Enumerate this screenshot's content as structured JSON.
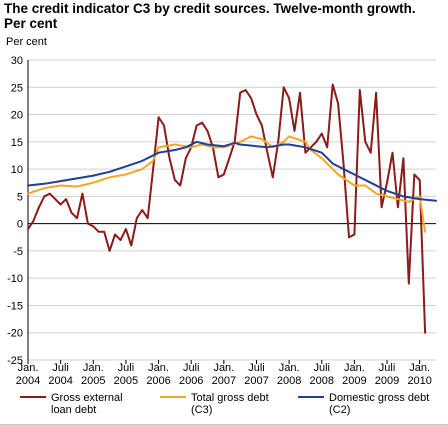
{
  "title_line1": "The credit indicator C3 by credit sources. Twelve-month growth.",
  "title_line2": "Per cent",
  "ylabel": "Per cent",
  "chart_data": {
    "type": "line",
    "ylim": [
      -25,
      30
    ],
    "yticks": [
      30,
      25,
      20,
      15,
      10,
      5,
      0,
      -5,
      -10,
      -15,
      -20,
      -25
    ],
    "xlim": [
      2004.0,
      2010.25
    ],
    "grid": "horizontal",
    "legend_position": "bottom",
    "xticks": [
      {
        "x": 2004.0,
        "top": "Jan.",
        "bottom": "2004"
      },
      {
        "x": 2004.5,
        "top": "Juli",
        "bottom": "2004"
      },
      {
        "x": 2005.0,
        "top": "Jan.",
        "bottom": "2005"
      },
      {
        "x": 2005.5,
        "top": "Juli",
        "bottom": "2005"
      },
      {
        "x": 2006.0,
        "top": "Jan.",
        "bottom": "2006"
      },
      {
        "x": 2006.5,
        "top": "Juli",
        "bottom": "2006"
      },
      {
        "x": 2007.0,
        "top": "Jan.",
        "bottom": "2007"
      },
      {
        "x": 2007.5,
        "top": "Juli",
        "bottom": "2007"
      },
      {
        "x": 2008.0,
        "top": "Jan.",
        "bottom": "2008"
      },
      {
        "x": 2008.5,
        "top": "Juli",
        "bottom": "2008"
      },
      {
        "x": 2009.0,
        "top": "Jan.",
        "bottom": "2009"
      },
      {
        "x": 2009.5,
        "top": "Juli",
        "bottom": "2009"
      },
      {
        "x": 2010.0,
        "top": "Jan.",
        "bottom": "2010"
      }
    ],
    "series": [
      {
        "name": "Gross external loan debt",
        "name_lines": [
          "Gross external",
          "loan debt"
        ],
        "color": "#8b1a1a",
        "points": [
          [
            2004.0,
            -1
          ],
          [
            2004.083,
            0.5
          ],
          [
            2004.167,
            3
          ],
          [
            2004.25,
            5
          ],
          [
            2004.333,
            5.5
          ],
          [
            2004.417,
            4.5
          ],
          [
            2004.5,
            3.5
          ],
          [
            2004.583,
            4.5
          ],
          [
            2004.667,
            2
          ],
          [
            2004.75,
            1
          ],
          [
            2004.833,
            5.5
          ],
          [
            2004.917,
            0
          ],
          [
            2005.0,
            -0.5
          ],
          [
            2005.083,
            -1.5
          ],
          [
            2005.167,
            -1.5
          ],
          [
            2005.25,
            -5
          ],
          [
            2005.333,
            -2
          ],
          [
            2005.417,
            -3
          ],
          [
            2005.5,
            -1
          ],
          [
            2005.583,
            -4
          ],
          [
            2005.667,
            1
          ],
          [
            2005.75,
            2.5
          ],
          [
            2005.833,
            1
          ],
          [
            2005.917,
            10
          ],
          [
            2006.0,
            19.5
          ],
          [
            2006.083,
            18
          ],
          [
            2006.167,
            12
          ],
          [
            2006.25,
            8
          ],
          [
            2006.333,
            7
          ],
          [
            2006.417,
            12
          ],
          [
            2006.5,
            14
          ],
          [
            2006.583,
            18
          ],
          [
            2006.667,
            18.5
          ],
          [
            2006.75,
            17
          ],
          [
            2006.833,
            14
          ],
          [
            2006.917,
            8.5
          ],
          [
            2007.0,
            9
          ],
          [
            2007.083,
            12
          ],
          [
            2007.167,
            15
          ],
          [
            2007.25,
            24
          ],
          [
            2007.333,
            24.5
          ],
          [
            2007.417,
            23
          ],
          [
            2007.5,
            20
          ],
          [
            2007.583,
            18
          ],
          [
            2007.667,
            13
          ],
          [
            2007.75,
            8.5
          ],
          [
            2007.833,
            15
          ],
          [
            2007.917,
            25
          ],
          [
            2008.0,
            23
          ],
          [
            2008.083,
            17
          ],
          [
            2008.167,
            24
          ],
          [
            2008.25,
            13
          ],
          [
            2008.333,
            14
          ],
          [
            2008.417,
            15
          ],
          [
            2008.5,
            16.5
          ],
          [
            2008.583,
            14
          ],
          [
            2008.667,
            25.5
          ],
          [
            2008.75,
            22
          ],
          [
            2008.833,
            11
          ],
          [
            2008.917,
            -2.5
          ],
          [
            2009.0,
            -2
          ],
          [
            2009.083,
            24.5
          ],
          [
            2009.167,
            15
          ],
          [
            2009.25,
            13
          ],
          [
            2009.333,
            24
          ],
          [
            2009.417,
            3
          ],
          [
            2009.5,
            7.5
          ],
          [
            2009.583,
            13
          ],
          [
            2009.667,
            3
          ],
          [
            2009.75,
            12
          ],
          [
            2009.833,
            -11
          ],
          [
            2009.917,
            9
          ],
          [
            2010.0,
            8
          ],
          [
            2010.083,
            -20
          ]
        ]
      },
      {
        "name": "Total gross debt (C3)",
        "name_lines": [
          "Total gross debt",
          "(C3)"
        ],
        "color": "#f5a623",
        "points": [
          [
            2004.0,
            5.5
          ],
          [
            2004.25,
            6.5
          ],
          [
            2004.5,
            7
          ],
          [
            2004.75,
            6.8
          ],
          [
            2005.0,
            7.5
          ],
          [
            2005.25,
            8.5
          ],
          [
            2005.5,
            9
          ],
          [
            2005.75,
            10
          ],
          [
            2005.917,
            11.5
          ],
          [
            2006.0,
            14
          ],
          [
            2006.25,
            14.5
          ],
          [
            2006.5,
            14
          ],
          [
            2006.667,
            14.5
          ],
          [
            2006.833,
            14
          ],
          [
            2007.0,
            14
          ],
          [
            2007.25,
            15
          ],
          [
            2007.417,
            16
          ],
          [
            2007.583,
            15.5
          ],
          [
            2007.75,
            14
          ],
          [
            2007.917,
            15
          ],
          [
            2008.0,
            16
          ],
          [
            2008.25,
            15
          ],
          [
            2008.333,
            13.5
          ],
          [
            2008.5,
            12
          ],
          [
            2008.75,
            9
          ],
          [
            2009.0,
            7
          ],
          [
            2009.167,
            7
          ],
          [
            2009.333,
            5.5
          ],
          [
            2009.5,
            5
          ],
          [
            2009.667,
            4.5
          ],
          [
            2009.833,
            4
          ],
          [
            2010.0,
            5
          ],
          [
            2010.083,
            -1.5
          ]
        ]
      },
      {
        "name": "Domestic gross debt (C2)",
        "name_lines": [
          "Domestic gross debt",
          "(C2)"
        ],
        "color": "#1f3f99",
        "points": [
          [
            2004.0,
            7
          ],
          [
            2004.25,
            7.3
          ],
          [
            2004.5,
            7.8
          ],
          [
            2004.75,
            8.3
          ],
          [
            2005.0,
            8.8
          ],
          [
            2005.25,
            9.5
          ],
          [
            2005.5,
            10.5
          ],
          [
            2005.75,
            11.5
          ],
          [
            2006.0,
            13
          ],
          [
            2006.25,
            13.5
          ],
          [
            2006.417,
            14
          ],
          [
            2006.583,
            15
          ],
          [
            2006.75,
            14.5
          ],
          [
            2007.0,
            14.2
          ],
          [
            2007.167,
            14.8
          ],
          [
            2007.25,
            14.5
          ],
          [
            2007.5,
            14.2
          ],
          [
            2007.667,
            14
          ],
          [
            2007.917,
            14.5
          ],
          [
            2008.0,
            14.5
          ],
          [
            2008.25,
            14
          ],
          [
            2008.5,
            13
          ],
          [
            2008.667,
            11
          ],
          [
            2008.917,
            9.5
          ],
          [
            2009.0,
            9
          ],
          [
            2009.25,
            7.5
          ],
          [
            2009.5,
            6
          ],
          [
            2009.75,
            5
          ],
          [
            2010.0,
            4.5
          ],
          [
            2010.25,
            4.2
          ]
        ]
      }
    ]
  }
}
